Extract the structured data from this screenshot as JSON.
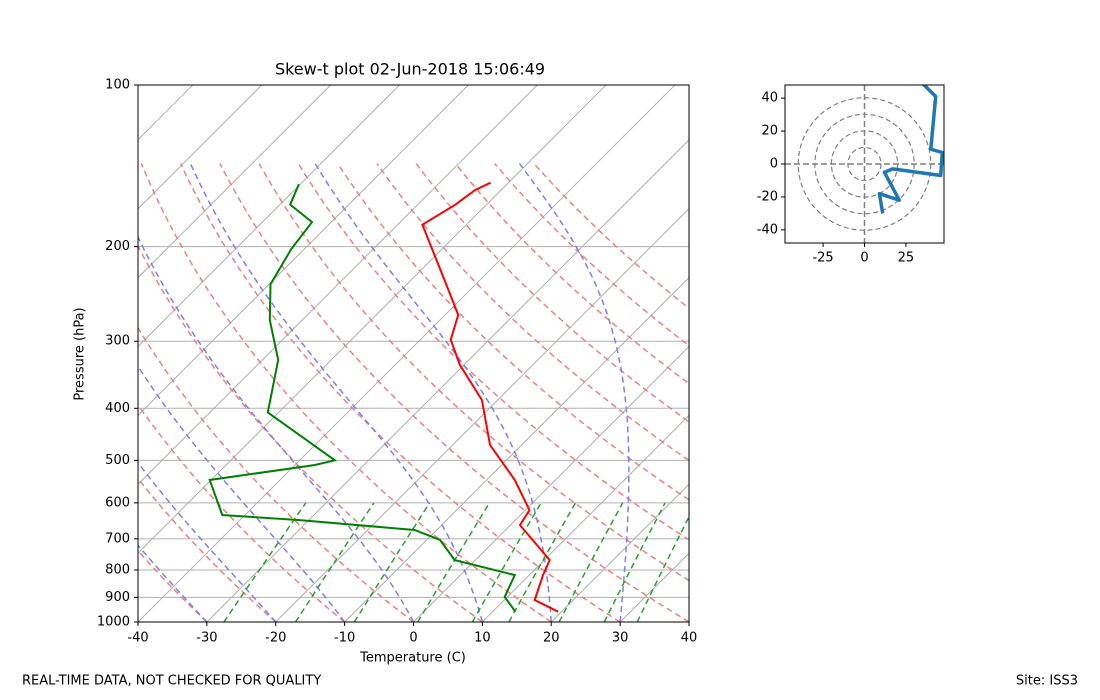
{
  "chart_data": [
    {
      "type": "skewt",
      "title": "Skew-t plot 02-Jun-2018 15:06:49",
      "x_label": "Temperature (C)",
      "y_label": "Pressure (hPa)",
      "xlim": [
        -40,
        40
      ],
      "xticks": [
        -40,
        -30,
        -20,
        -10,
        0,
        10,
        20,
        30,
        40
      ],
      "ylim": [
        1000,
        100
      ],
      "yticks": [
        100,
        200,
        300,
        400,
        500,
        600,
        700,
        800,
        900,
        1000
      ],
      "log_y": true,
      "grid": true,
      "series": [
        {
          "color": "#ff0000",
          "y": [
            957,
            910,
            818,
            767,
            660,
            619,
            544,
            468,
            386,
            332,
            298,
            268,
            231,
            182,
            167,
            157,
            152
          ],
          "x": [
            19.5,
            14.4,
            12.0,
            10.8,
            1.4,
            0.6,
            -5.9,
            -14.6,
            -22.3,
            -30.6,
            -35.6,
            -38.1,
            -45.1,
            -56.4,
            -54.5,
            -53.8,
            -52.6
          ]
        },
        {
          "color": "#008000",
          "y": [
            957,
            898,
            818,
            767,
            703,
            674,
            646,
            632,
            544,
            510,
            500,
            449,
            407,
            325,
            274,
            235,
            202,
            180,
            167,
            153
          ],
          "x": [
            13.3,
            9.6,
            7.9,
            -3.0,
            -8.1,
            -13.2,
            -31.3,
            -43.3,
            -50.2,
            -37.1,
            -34.9,
            -43.6,
            -51.6,
            -57.7,
            -64.7,
            -69.8,
            -71.9,
            -72.8,
            -78.5,
            -80.2
          ]
        }
      ]
    },
    {
      "type": "hodograph",
      "xlim": [
        -48,
        48
      ],
      "ylim": [
        -48,
        48
      ],
      "xticks": [
        -25,
        0,
        25
      ],
      "yticks": [
        -40,
        -20,
        0,
        20,
        40
      ],
      "series": [
        {
          "color": "#1f77b4",
          "x": [
            11,
            9,
            21,
            12,
            17,
            46,
            47,
            40,
            43,
            34
          ],
          "y": [
            -30,
            -18,
            -22,
            -5,
            -3,
            -7,
            7,
            9,
            41,
            50
          ]
        }
      ]
    }
  ],
  "footer": {
    "left": "REAL-TIME DATA, NOT CHECKED FOR QUALITY",
    "right": "Site: ISS3"
  }
}
